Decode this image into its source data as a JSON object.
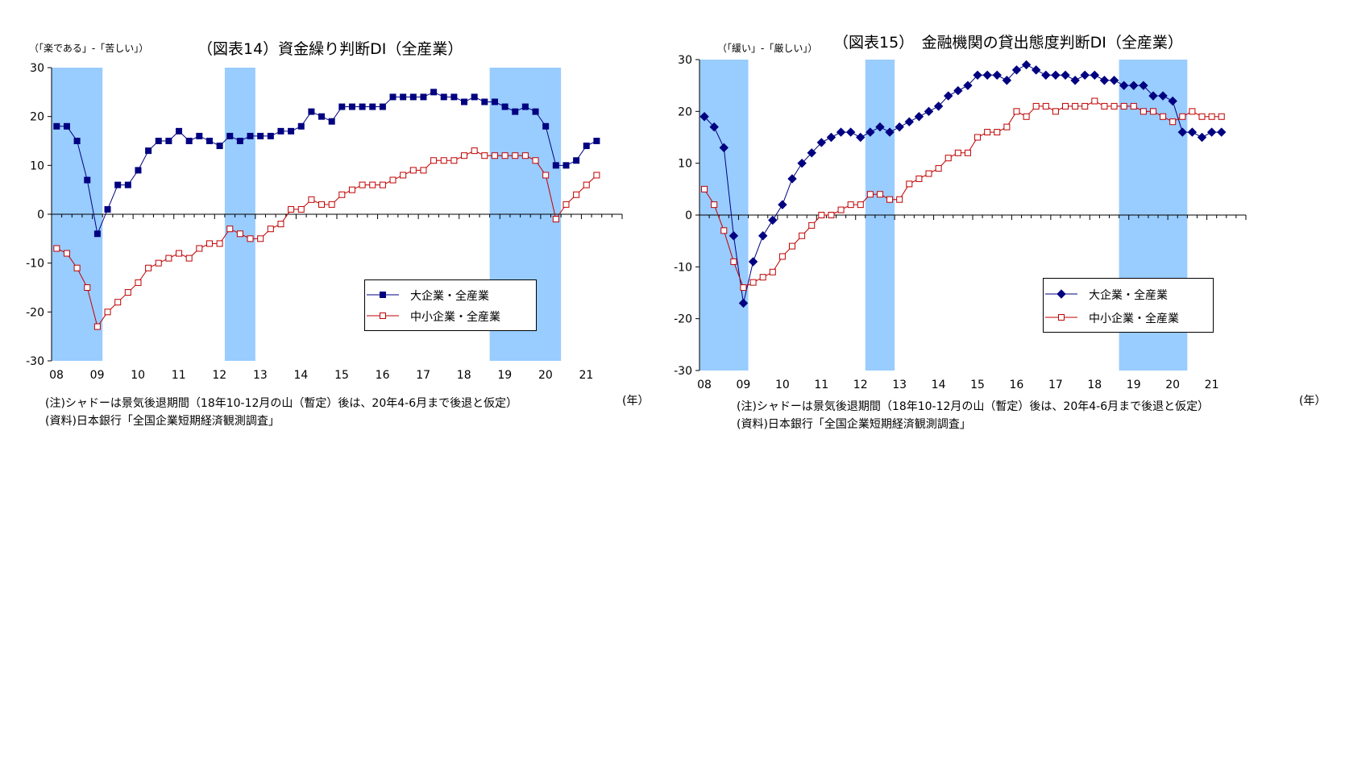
{
  "chart_data": [
    {
      "type": "line",
      "title": "（図表14）資金繰り判断DI（全産業）",
      "ylabel": "（「楽である」-「苦しい」）",
      "xunit": "(年）",
      "x_tick_labels": [
        "08",
        "09",
        "10",
        "11",
        "12",
        "13",
        "14",
        "15",
        "16",
        "17",
        "18",
        "19",
        "20",
        "21"
      ],
      "ylim": [
        -30,
        30
      ],
      "y_ticks": [
        -30,
        -20,
        -10,
        0,
        10,
        20,
        30
      ],
      "x_start": "2008Q1",
      "shaded_periods": [
        [
          "2008Q1",
          "2009Q1"
        ],
        [
          "2012Q2",
          "2012Q4"
        ],
        [
          "2018Q4",
          "2020Q2"
        ]
      ],
      "legend_position": "bottom-right",
      "series": [
        {
          "name": "大企業・全産業",
          "color": "#000080",
          "marker": "filled-square",
          "values": [
            18,
            18,
            15,
            7,
            -4,
            1,
            6,
            6,
            9,
            13,
            15,
            15,
            17,
            15,
            16,
            15,
            14,
            16,
            15,
            16,
            16,
            16,
            17,
            17,
            18,
            21,
            20,
            19,
            22,
            22,
            22,
            22,
            22,
            24,
            24,
            24,
            24,
            25,
            24,
            24,
            23,
            24,
            23,
            23,
            22,
            21,
            22,
            21,
            18,
            10,
            10,
            11,
            14,
            15
          ]
        },
        {
          "name": "中小企業・全産業",
          "color": "#C00000",
          "marker": "hollow-square",
          "values": [
            -7,
            -8,
            -11,
            -15,
            -23,
            -20,
            -18,
            -16,
            -14,
            -11,
            -10,
            -9,
            -8,
            -9,
            -7,
            -6,
            -6,
            -3,
            -4,
            -5,
            -5,
            -3,
            -2,
            1,
            1,
            3,
            2,
            2,
            4,
            5,
            6,
            6,
            6,
            7,
            8,
            9,
            9,
            11,
            11,
            11,
            12,
            13,
            12,
            12,
            12,
            12,
            12,
            11,
            8,
            -1,
            2,
            4,
            6,
            8
          ]
        }
      ],
      "notes": [
        "(注)シャドーは景気後退期間（18年10-12月の山（暫定）後は、20年4-6月まで後退と仮定）",
        "(資料)日本銀行「全国企業短期経済観測調査」"
      ]
    },
    {
      "type": "line",
      "title": "（図表15）　金融機関の貸出態度判断DI（全産業）",
      "ylabel": "（「緩い」-「厳しい」）",
      "xunit": "(年）",
      "x_tick_labels": [
        "08",
        "09",
        "10",
        "11",
        "12",
        "13",
        "14",
        "15",
        "16",
        "17",
        "18",
        "19",
        "20",
        "21"
      ],
      "ylim": [
        -30,
        30
      ],
      "y_ticks": [
        -30,
        -20,
        -10,
        0,
        10,
        20,
        30
      ],
      "x_start": "2008Q1",
      "shaded_periods": [
        [
          "2008Q1",
          "2009Q1"
        ],
        [
          "2012Q2",
          "2012Q4"
        ],
        [
          "2018Q4",
          "2020Q2"
        ]
      ],
      "legend_position": "bottom-right",
      "series": [
        {
          "name": "大企業・全産業",
          "color": "#000080",
          "marker": "filled-diamond",
          "values": [
            19,
            17,
            13,
            -4,
            -17,
            -9,
            -4,
            -1,
            2,
            7,
            10,
            12,
            14,
            15,
            16,
            16,
            15,
            16,
            17,
            16,
            17,
            18,
            19,
            20,
            21,
            23,
            24,
            25,
            27,
            27,
            27,
            26,
            28,
            29,
            28,
            27,
            27,
            27,
            26,
            27,
            27,
            26,
            26,
            25,
            25,
            25,
            23,
            23,
            22,
            16,
            16,
            15,
            16,
            16
          ]
        },
        {
          "name": "中小企業・全産業",
          "color": "#C00000",
          "marker": "hollow-square",
          "values": [
            5,
            2,
            -3,
            -9,
            -14,
            -13,
            -12,
            -11,
            -8,
            -6,
            -4,
            -2,
            0,
            0,
            1,
            2,
            2,
            4,
            4,
            3,
            3,
            6,
            7,
            8,
            9,
            11,
            12,
            12,
            15,
            16,
            16,
            17,
            20,
            19,
            21,
            21,
            20,
            21,
            21,
            21,
            22,
            21,
            21,
            21,
            21,
            20,
            20,
            19,
            18,
            19,
            20,
            19,
            19,
            19
          ]
        }
      ],
      "notes": [
        "(注)シャドーは景気後退期間（18年10-12月の山（暫定）後は、20年4-6月まで後退と仮定）",
        "(資料)日本銀行「全国企業短期経済観測調査」"
      ]
    }
  ]
}
